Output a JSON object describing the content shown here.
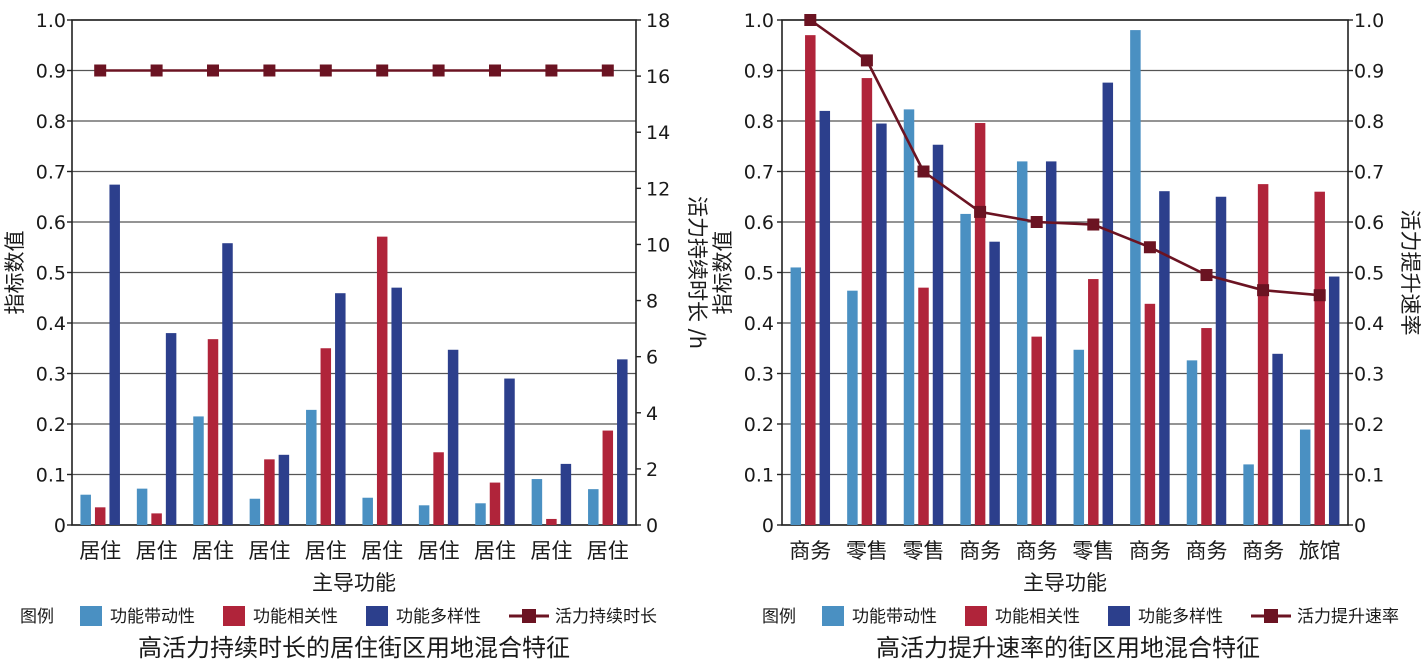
{
  "chart_data": [
    {
      "type": "bar+line",
      "title": "高活力持续时长的居住街区用地混合特征",
      "xlabel": "主导功能",
      "ylabel": "指标数值",
      "y2label": "活力持续时长 /h",
      "ylim": [
        0,
        1.0
      ],
      "y2lim": [
        0,
        18
      ],
      "yticks": [
        "0",
        "0.1",
        "0.2",
        "0.3",
        "0.4",
        "0.5",
        "0.6",
        "0.7",
        "0.8",
        "0.9",
        "1.0"
      ],
      "y2ticks": [
        "0",
        "2",
        "4",
        "6",
        "8",
        "10",
        "12",
        "14",
        "16",
        "18"
      ],
      "grid": true,
      "legend_title": "图例",
      "legend_position": "bottom",
      "categories": [
        "居住",
        "居住",
        "居住",
        "居住",
        "居住",
        "居住",
        "居住",
        "居住",
        "居住",
        "居住"
      ],
      "series": [
        {
          "name": "功能带动性",
          "kind": "bar",
          "axis": "left",
          "color": "#4a90c2",
          "values": [
            0.06,
            0.072,
            0.215,
            0.052,
            0.228,
            0.054,
            0.039,
            0.043,
            0.091,
            0.071
          ]
        },
        {
          "name": "功能相关性",
          "kind": "bar",
          "axis": "left",
          "color": "#b0243a",
          "values": [
            0.035,
            0.023,
            0.368,
            0.13,
            0.35,
            0.571,
            0.144,
            0.084,
            0.012,
            0.187
          ]
        },
        {
          "name": "功能多样性",
          "kind": "bar",
          "axis": "left",
          "color": "#2c3f8c",
          "values": [
            0.674,
            0.38,
            0.558,
            0.139,
            0.459,
            0.47,
            0.347,
            0.29,
            0.121,
            0.328
          ]
        },
        {
          "name": "活力持续时长",
          "kind": "line",
          "axis": "right",
          "color": "#6b1322",
          "values": [
            16.2,
            16.2,
            16.2,
            16.2,
            16.2,
            16.2,
            16.2,
            16.2,
            16.2,
            16.2
          ]
        }
      ]
    },
    {
      "type": "bar+line",
      "title": "高活力提升速率的街区用地混合特征",
      "xlabel": "主导功能",
      "ylabel": "指标数值",
      "y2label": "活力提升速率",
      "ylim": [
        0,
        1.0
      ],
      "y2lim": [
        0,
        1.0
      ],
      "yticks": [
        "0",
        "0.1",
        "0.2",
        "0.3",
        "0.4",
        "0.5",
        "0.6",
        "0.7",
        "0.8",
        "0.9",
        "1.0"
      ],
      "y2ticks": [
        "0",
        "0.1",
        "0.2",
        "0.3",
        "0.4",
        "0.5",
        "0.6",
        "0.7",
        "0.8",
        "0.9",
        "1.0"
      ],
      "grid": true,
      "legend_title": "图例",
      "legend_position": "bottom",
      "categories": [
        "商务",
        "零售",
        "零售",
        "商务",
        "商务",
        "零售",
        "商务",
        "商务",
        "商务",
        "旅馆"
      ],
      "series": [
        {
          "name": "功能带动性",
          "kind": "bar",
          "axis": "left",
          "color": "#4a90c2",
          "values": [
            0.51,
            0.464,
            0.823,
            0.616,
            0.72,
            0.347,
            0.98,
            0.326,
            0.12,
            0.189
          ]
        },
        {
          "name": "功能相关性",
          "kind": "bar",
          "axis": "left",
          "color": "#b0243a",
          "values": [
            0.97,
            0.885,
            0.47,
            0.796,
            0.373,
            0.487,
            0.438,
            0.39,
            0.675,
            0.66
          ]
        },
        {
          "name": "功能多样性",
          "kind": "bar",
          "axis": "left",
          "color": "#2c3f8c",
          "values": [
            0.82,
            0.795,
            0.753,
            0.561,
            0.72,
            0.876,
            0.661,
            0.65,
            0.339,
            0.492
          ]
        },
        {
          "name": "活力提升速率",
          "kind": "line",
          "axis": "right",
          "color": "#6b1322",
          "values": [
            1.0,
            0.92,
            0.7,
            0.62,
            0.6,
            0.595,
            0.55,
            0.495,
            0.465,
            0.455
          ]
        }
      ]
    }
  ]
}
